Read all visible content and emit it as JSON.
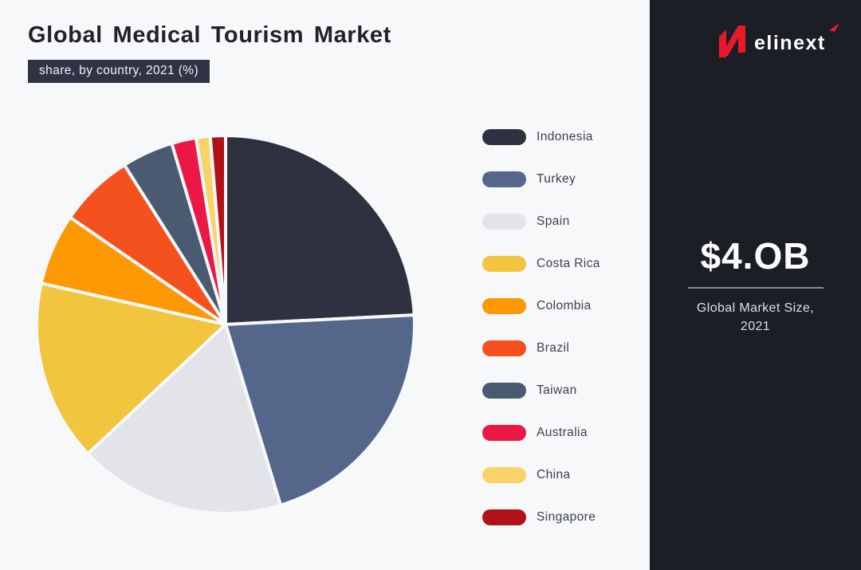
{
  "header": {
    "title": "Global Medical Tourism Market",
    "subtitle_badge": "share, by country, 2021 (%)"
  },
  "chart_data": {
    "type": "pie",
    "title": "Global Medical Tourism Market share, by country, 2021 (%)",
    "unit": "%",
    "start_angle_deg": 0,
    "direction": "clockwise",
    "legend_position": "right",
    "categories": [
      "Indonesia",
      "Turkey",
      "Spain",
      "Costa Rica",
      "Colombia",
      "Brazil",
      "Taiwan",
      "Australia",
      "China",
      "Singapore"
    ],
    "values": [
      24.2,
      21.1,
      17.7,
      15.5,
      6.1,
      6.4,
      4.4,
      2.1,
      1.2,
      1.3
    ],
    "colors": [
      "#2e3240",
      "#54678a",
      "#e2e4e9",
      "#f1c63e",
      "#fe9803",
      "#f4511e",
      "#4a5a70",
      "#eb1745",
      "#f8d468",
      "#b11218"
    ]
  },
  "sidebar": {
    "logo_text": "elinext",
    "market_size_value": "$4.OB",
    "market_size_caption_line1": "Global Market Size,",
    "market_size_caption_line2": "2021",
    "background": "#1b1e24",
    "accent": "#e8192c"
  },
  "colors": {
    "page_bg": "#f7f8fa",
    "badge_bg": "#2e3444",
    "title_text": "#20222a",
    "legend_label": "#3d414d"
  }
}
